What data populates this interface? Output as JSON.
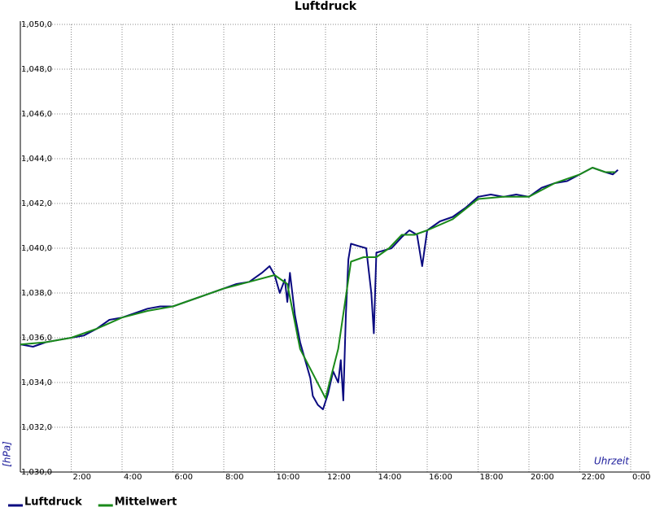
{
  "chart_data": {
    "type": "line",
    "title": "Luftdruck",
    "y_label": "[hPa]",
    "x_label": "Uhrzeit",
    "xlim": [
      0,
      24
    ],
    "ylim": [
      1030,
      1050
    ],
    "xticks": [
      {
        "value": 2,
        "label": "2:00"
      },
      {
        "value": 4,
        "label": "4:00"
      },
      {
        "value": 6,
        "label": "6:00"
      },
      {
        "value": 8,
        "label": "8:00"
      },
      {
        "value": 10,
        "label": "10:00"
      },
      {
        "value": 12,
        "label": "12:00"
      },
      {
        "value": 14,
        "label": "14:00"
      },
      {
        "value": 16,
        "label": "16:00"
      },
      {
        "value": 18,
        "label": "18:00"
      },
      {
        "value": 20,
        "label": "20:00"
      },
      {
        "value": 22,
        "label": "22:00"
      },
      {
        "value": 24,
        "label": "0:00"
      }
    ],
    "yticks": [
      {
        "value": 1030,
        "label": "1,030,0"
      },
      {
        "value": 1032,
        "label": "1,032,0"
      },
      {
        "value": 1034,
        "label": "1,034,0"
      },
      {
        "value": 1036,
        "label": "1,036,0"
      },
      {
        "value": 1038,
        "label": "1,038,0"
      },
      {
        "value": 1040,
        "label": "1,040,0"
      },
      {
        "value": 1042,
        "label": "1,042,0"
      },
      {
        "value": 1044,
        "label": "1,044,0"
      },
      {
        "value": 1046,
        "label": "1,046,0"
      },
      {
        "value": 1048,
        "label": "1,048,0"
      },
      {
        "value": 1050,
        "label": "1,050,0"
      }
    ],
    "grid": true,
    "legend": "bottom-left",
    "series": [
      {
        "name": "Luftdruck",
        "color": "#0a0a80",
        "x": [
          0,
          0.5,
          1,
          1.5,
          2,
          2.5,
          3,
          3.5,
          4,
          4.5,
          5,
          5.5,
          6,
          6.5,
          7,
          7.5,
          8,
          8.5,
          9,
          9.5,
          9.8,
          10,
          10.2,
          10.4,
          10.5,
          10.6,
          10.8,
          11,
          11.2,
          11.4,
          11.5,
          11.7,
          11.9,
          12.1,
          12.3,
          12.5,
          12.6,
          12.7,
          12.8,
          12.9,
          13,
          13.3,
          13.6,
          13.8,
          13.9,
          14,
          14.3,
          14.6,
          15,
          15.3,
          15.6,
          15.8,
          16,
          16.5,
          17,
          17.5,
          18,
          18.5,
          19,
          19.5,
          20,
          20.5,
          21,
          21.5,
          22,
          22.5,
          23,
          23.3,
          23.5
        ],
        "values": [
          1035.7,
          1035.6,
          1035.8,
          1035.9,
          1036.0,
          1036.1,
          1036.4,
          1036.8,
          1036.9,
          1037.1,
          1037.3,
          1037.4,
          1037.4,
          1037.6,
          1037.8,
          1038.0,
          1038.2,
          1038.4,
          1038.5,
          1038.9,
          1039.2,
          1038.8,
          1038.0,
          1038.6,
          1037.6,
          1038.9,
          1037.0,
          1035.8,
          1035.0,
          1034.2,
          1033.4,
          1033.0,
          1032.8,
          1033.5,
          1034.5,
          1034.0,
          1035.0,
          1033.2,
          1037.0,
          1039.5,
          1040.2,
          1040.1,
          1040.0,
          1038.0,
          1036.2,
          1039.8,
          1039.9,
          1040.0,
          1040.5,
          1040.8,
          1040.6,
          1039.2,
          1040.8,
          1041.2,
          1041.4,
          1041.8,
          1042.3,
          1042.4,
          1042.3,
          1042.4,
          1042.3,
          1042.7,
          1042.9,
          1043.0,
          1043.3,
          1043.6,
          1043.4,
          1043.3,
          1043.5
        ]
      },
      {
        "name": "Mittelwert",
        "color": "#1a8a1a",
        "x": [
          0,
          1,
          2,
          3,
          4,
          5,
          6,
          7,
          8,
          9,
          10,
          10.5,
          11,
          12,
          12.5,
          13,
          13.5,
          14,
          14.5,
          15,
          15.5,
          16,
          17,
          18,
          19,
          20,
          21,
          22,
          22.5,
          23,
          23.4
        ],
        "values": [
          1035.7,
          1035.8,
          1036.0,
          1036.4,
          1036.9,
          1037.2,
          1037.4,
          1037.8,
          1038.2,
          1038.5,
          1038.8,
          1038.4,
          1035.5,
          1033.3,
          1035.5,
          1039.4,
          1039.6,
          1039.6,
          1040.0,
          1040.6,
          1040.6,
          1040.8,
          1041.3,
          1042.2,
          1042.3,
          1042.3,
          1042.9,
          1043.3,
          1043.6,
          1043.4,
          1043.4
        ]
      }
    ]
  }
}
